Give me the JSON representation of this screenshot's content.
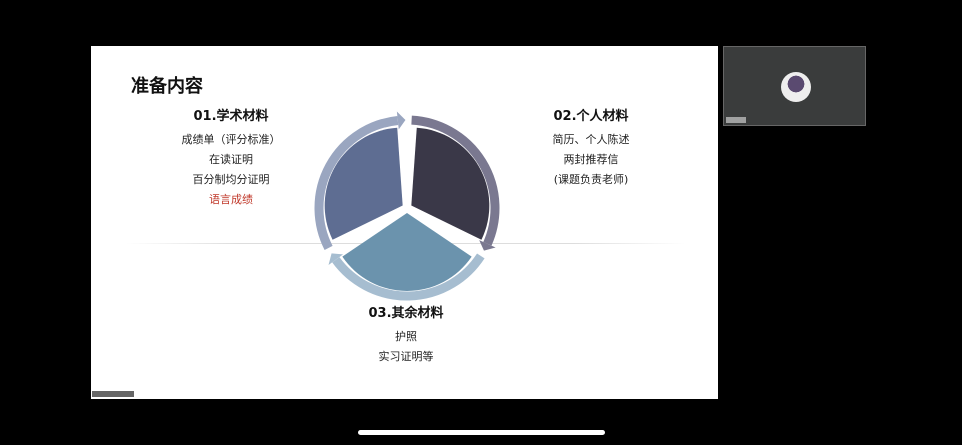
{
  "slide": {
    "title": "准备内容",
    "sections": [
      {
        "heading": "01.学术材料",
        "items": [
          "成绩单（评分标准）",
          "在读证明",
          "百分制均分证明",
          "语言成绩"
        ],
        "highlight_item": "语言成绩"
      },
      {
        "heading": "02.个人材料",
        "items": [
          "简历、个人陈述",
          "两封推荐信",
          "(课题负责老师)"
        ]
      },
      {
        "heading": "03.其余材料",
        "items": [
          "护照",
          "实习证明等"
        ]
      }
    ],
    "colors": {
      "segment_1": "#5e6d92",
      "segment_2": "#3a3848",
      "segment_3": "#6b93ad",
      "highlight": "#c0392b"
    }
  }
}
